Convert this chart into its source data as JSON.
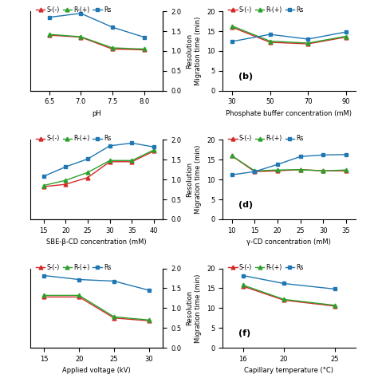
{
  "colors": {
    "S": "#d62728",
    "R": "#2ca02c",
    "Rs": "#1f77b4"
  },
  "markers": {
    "S": "^",
    "R": "^",
    "Rs": "s"
  },
  "panel_a": {
    "xlabel": "pH",
    "ylabel_right": "Resolution",
    "x": [
      6.5,
      7,
      7.5,
      8
    ],
    "S": [
      14.0,
      13.5,
      10.5,
      10.3
    ],
    "R": [
      14.2,
      13.6,
      10.8,
      10.5
    ],
    "Rs": [
      1.85,
      1.95,
      1.6,
      1.35
    ],
    "xlim": [
      6.2,
      8.3
    ],
    "xticks": [
      6.5,
      7,
      7.5,
      8
    ],
    "ylim_left": [
      0,
      20
    ],
    "ylim_right": [
      0.0,
      2.0
    ],
    "yticks_right": [
      0.0,
      0.5,
      1.0,
      1.5,
      2.0
    ]
  },
  "panel_b": {
    "xlabel": "Phosphate buffer concentration (mM)",
    "ylabel": "Migration time (min)",
    "x": [
      30,
      50,
      70,
      90
    ],
    "S": [
      16.0,
      12.2,
      11.8,
      13.5
    ],
    "R": [
      16.3,
      12.5,
      12.0,
      13.7
    ],
    "Rs": [
      12.4,
      14.2,
      13.0,
      14.8
    ],
    "xlim": [
      25,
      95
    ],
    "xticks": [
      30,
      50,
      70,
      90
    ],
    "ylim": [
      0,
      20
    ],
    "yticks": [
      0,
      5,
      10,
      15,
      20
    ],
    "label": "(b)"
  },
  "panel_c": {
    "xlabel": "SBE-β-CD concentration (mM)",
    "ylabel_right": "Resolution",
    "x": [
      15,
      20,
      25,
      30,
      35,
      40
    ],
    "S": [
      0.82,
      0.88,
      1.05,
      1.45,
      1.45,
      1.72
    ],
    "R": [
      0.85,
      0.98,
      1.18,
      1.48,
      1.48,
      1.75
    ],
    "Rs": [
      1.08,
      1.32,
      1.52,
      1.85,
      1.92,
      1.82
    ],
    "xlim": [
      12,
      42
    ],
    "xticks": [
      15,
      20,
      25,
      30,
      35,
      40
    ],
    "ylim_right": [
      0.0,
      2.0
    ],
    "yticks_right": [
      0.0,
      0.5,
      1.0,
      1.5,
      2.0
    ]
  },
  "panel_d": {
    "xlabel": "γ-CD concentration (mM)",
    "ylabel": "Migration time (min)",
    "x": [
      10,
      15,
      20,
      25,
      30,
      35
    ],
    "S": [
      16.0,
      12.0,
      12.2,
      12.5,
      12.2,
      12.2
    ],
    "R": [
      16.0,
      12.2,
      12.4,
      12.5,
      12.2,
      12.4
    ],
    "Rs": [
      11.2,
      12.0,
      13.8,
      15.8,
      16.2,
      16.3
    ],
    "xlim": [
      8,
      37
    ],
    "xticks": [
      10,
      15,
      20,
      25,
      30,
      35
    ],
    "ylim": [
      0,
      20
    ],
    "yticks": [
      0,
      5,
      10,
      15,
      20
    ],
    "label": "(d)"
  },
  "panel_e": {
    "xlabel": "Applied voltage (kV)",
    "ylabel_right": "Resolution",
    "x": [
      15,
      20,
      25,
      30
    ],
    "S": [
      1.28,
      1.28,
      0.75,
      0.68
    ],
    "R": [
      1.32,
      1.32,
      0.78,
      0.7
    ],
    "Rs": [
      1.82,
      1.72,
      1.68,
      1.45
    ],
    "xlim": [
      13,
      32
    ],
    "xticks": [
      15,
      20,
      25,
      30
    ],
    "ylim_right": [
      0.0,
      2.0
    ],
    "yticks_right": [
      0.0,
      0.5,
      1.0,
      1.5,
      2.0
    ]
  },
  "panel_f": {
    "xlabel": "Capillary temperature (°C)",
    "ylabel": "Migration time (min)",
    "x": [
      16,
      20,
      25
    ],
    "S": [
      15.5,
      12.0,
      10.5
    ],
    "R": [
      15.8,
      12.2,
      10.7
    ],
    "Rs": [
      18.2,
      16.2,
      14.8
    ],
    "xlim": [
      14,
      27
    ],
    "xticks": [
      16,
      20,
      25
    ],
    "ylim": [
      0,
      20
    ],
    "yticks": [
      0,
      5,
      10,
      15,
      20
    ],
    "label": "(f)"
  }
}
